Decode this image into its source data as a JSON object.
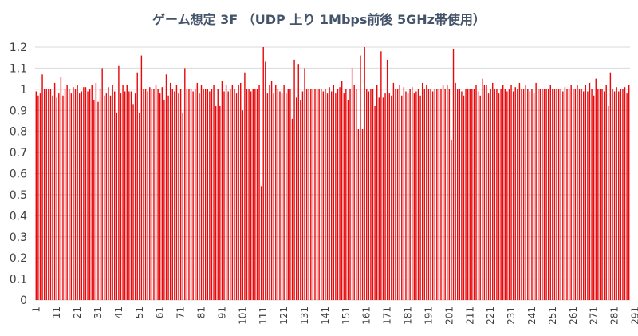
{
  "chart_data": {
    "type": "bar",
    "title": "ゲーム想定 3F （UDP 上り 1Mbps前後 5GHz帯使用）",
    "xlabel": "",
    "ylabel": "",
    "ylim": [
      0,
      1.2
    ],
    "y_ticks": [
      "0",
      "0.1",
      "0.2",
      "0.3",
      "0.4",
      "0.5",
      "0.6",
      "0.7",
      "0.8",
      "0.9",
      "1",
      "1.1",
      "1.2"
    ],
    "x_tick_labels": [
      "1",
      "11",
      "21",
      "31",
      "41",
      "51",
      "61",
      "71",
      "81",
      "91",
      "101",
      "111",
      "121",
      "131",
      "141",
      "151",
      "161",
      "171",
      "181",
      "191",
      "201",
      "211",
      "221",
      "231",
      "241",
      "251",
      "261",
      "271",
      "281",
      "291"
    ],
    "bar_color": "#e8090c",
    "grid": true,
    "legend": "none",
    "values": [
      0.99,
      0.97,
      0.98,
      1.07,
      1.0,
      1.0,
      1.0,
      1.0,
      0.97,
      1.03,
      0.96,
      0.98,
      1.06,
      0.97,
      1.0,
      1.02,
      1.0,
      0.98,
      1.01,
      1.0,
      1.02,
      0.98,
      0.99,
      1.01,
      1.01,
      0.99,
      1.0,
      1.02,
      0.95,
      1.03,
      0.94,
      1.0,
      1.1,
      0.97,
      0.98,
      1.01,
      0.97,
      1.02,
      0.99,
      0.89,
      1.11,
      0.98,
      1.02,
      0.99,
      1.02,
      0.99,
      0.99,
      0.93,
      0.98,
      1.08,
      0.89,
      1.16,
      1.0,
      1.0,
      0.99,
      1.01,
      1.0,
      1.0,
      1.02,
      1.0,
      0.98,
      1.01,
      0.95,
      1.07,
      0.97,
      1.03,
      1.0,
      0.99,
      1.02,
      0.98,
      1.0,
      0.89,
      1.1,
      1.0,
      1.0,
      1.0,
      0.99,
      1.0,
      1.03,
      0.98,
      1.02,
      1.0,
      1.0,
      1.0,
      0.99,
      1.0,
      1.02,
      0.92,
      1.0,
      0.92,
      1.04,
      0.99,
      1.02,
      0.99,
      1.0,
      1.02,
      1.0,
      0.98,
      1.02,
      1.03,
      0.9,
      1.08,
      1.0,
      1.0,
      0.99,
      1.0,
      1.0,
      1.0,
      1.02,
      0.54,
      1.2,
      1.13,
      0.98,
      1.02,
      1.04,
      0.98,
      1.02,
      1.0,
      0.99,
      0.98,
      1.02,
      0.98,
      1.0,
      1.0,
      0.86,
      1.14,
      0.96,
      1.12,
      0.95,
      0.99,
      1.1,
      1.0,
      1.0,
      1.0,
      1.0,
      1.0,
      1.0,
      1.0,
      1.0,
      0.99,
      1.0,
      0.98,
      1.01,
      0.99,
      1.02,
      0.98,
      1.0,
      1.01,
      1.04,
      0.98,
      1.0,
      0.95,
      1.0,
      1.1,
      1.02,
      1.0,
      0.81,
      1.16,
      0.81,
      1.2,
      1.0,
      0.99,
      1.0,
      1.0,
      0.92,
      1.02,
      0.96,
      1.18,
      0.96,
      0.98,
      1.14,
      0.98,
      0.97,
      1.03,
      1.0,
      1.0,
      1.02,
      0.97,
      1.01,
      0.99,
      0.98,
      1.0,
      1.01,
      0.98,
      0.99,
      1.0,
      0.97,
      1.03,
      1.0,
      1.02,
      1.0,
      1.0,
      0.99,
      1.0,
      1.0,
      1.0,
      1.0,
      1.02,
      1.0,
      1.02,
      1.0,
      0.76,
      1.19,
      1.03,
      1.0,
      1.0,
      0.99,
      0.97,
      1.0,
      1.0,
      1.0,
      1.0,
      1.0,
      1.02,
      0.99,
      0.97,
      1.05,
      1.02,
      1.02,
      0.98,
      1.0,
      1.03,
      1.0,
      1.0,
      0.98,
      1.0,
      1.02,
      1.0,
      0.99,
      1.0,
      1.02,
      0.99,
      1.01,
      1.0,
      1.03,
      1.0,
      1.0,
      1.02,
      1.0,
      0.99,
      1.0,
      0.98,
      1.03,
      1.0,
      1.0,
      1.0,
      1.0,
      1.0,
      1.0,
      1.02,
      1.0,
      1.0,
      1.0,
      1.0,
      1.0,
      0.99,
      1.01,
      1.0,
      1.0,
      1.02,
      1.0,
      1.0,
      1.02,
      1.0,
      1.0,
      0.99,
      1.02,
      0.99,
      1.03,
      1.0,
      0.97,
      1.05,
      1.0,
      1.0,
      1.0,
      0.99,
      1.02,
      0.92,
      1.08,
      1.0,
      0.99,
      1.01,
      0.99,
      1.0,
      1.0,
      1.01,
      0.98,
      1.02
    ]
  }
}
